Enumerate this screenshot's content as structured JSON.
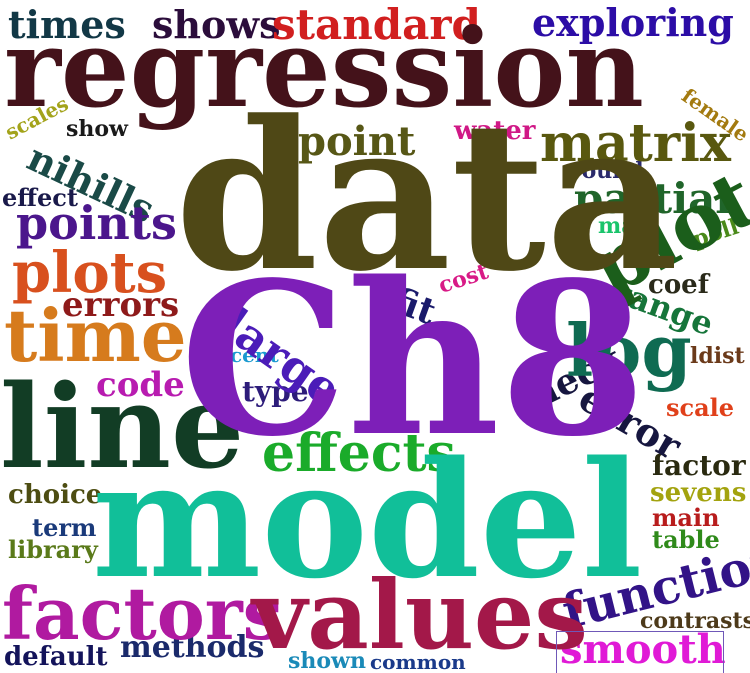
{
  "words": [
    {
      "id": "ch8",
      "text": "Ch8",
      "color": "#7d1fb8"
    },
    {
      "id": "model",
      "text": "model",
      "color": "#11bf99"
    },
    {
      "id": "data",
      "text": "data",
      "color": "#4f4816"
    },
    {
      "id": "regression",
      "text": "regression",
      "color": "#44121a"
    },
    {
      "id": "line",
      "text": "line",
      "color": "#123d25"
    },
    {
      "id": "values",
      "text": "values",
      "color": "#a31849"
    },
    {
      "id": "factors",
      "text": "factors",
      "color": "#b01aa0"
    },
    {
      "id": "time",
      "text": "time",
      "color": "#d67b1d"
    },
    {
      "id": "plot",
      "text": "plot",
      "color": "#1b5e1b"
    },
    {
      "id": "log",
      "text": "log",
      "color": "#0f6b52"
    },
    {
      "id": "effects",
      "text": "effects",
      "color": "#1aab2a"
    },
    {
      "id": "plots",
      "text": "plots",
      "color": "#d8501e"
    },
    {
      "id": "matrix",
      "text": "matrix",
      "color": "#59580f"
    },
    {
      "id": "function",
      "text": "function",
      "color": "#321387"
    },
    {
      "id": "points",
      "text": "points",
      "color": "#4b168c"
    },
    {
      "id": "standard",
      "text": "standard",
      "color": "#d11f1f"
    },
    {
      "id": "shows",
      "text": "shows",
      "color": "#2b0d3b"
    },
    {
      "id": "times",
      "text": "times",
      "color": "#123846"
    },
    {
      "id": "exploring",
      "text": "exploring",
      "color": "#2c0da6"
    },
    {
      "id": "large",
      "text": "large",
      "color": "#4b1cb8"
    },
    {
      "id": "partial",
      "text": "partial",
      "color": "#20652a"
    },
    {
      "id": "point",
      "text": "point",
      "color": "#575716"
    },
    {
      "id": "nihills",
      "text": "nihills",
      "color": "#1a4a47"
    },
    {
      "id": "errors",
      "text": "errors",
      "color": "#8e1a1a"
    },
    {
      "id": "code",
      "text": "code",
      "color": "#b81cb0"
    },
    {
      "id": "error",
      "text": "error",
      "color": "#16163f"
    },
    {
      "id": "check",
      "text": "check",
      "color": "#16163f"
    },
    {
      "id": "range",
      "text": "range",
      "color": "#16753a"
    },
    {
      "id": "smooth",
      "text": "smooth",
      "color": "#e01ad6"
    },
    {
      "id": "methods",
      "text": "methods",
      "color": "#1a2a6b"
    },
    {
      "id": "default",
      "text": "default",
      "color": "#13135a"
    },
    {
      "id": "fit",
      "text": "fit",
      "color": "#1a1a6b"
    },
    {
      "id": "type",
      "text": "type",
      "color": "#2d1c7a"
    },
    {
      "id": "water",
      "text": "water",
      "color": "#d01886"
    },
    {
      "id": "coef",
      "text": "coef",
      "color": "#2a2a1a"
    },
    {
      "id": "factor",
      "text": "factor",
      "color": "#2a2a10"
    },
    {
      "id": "effect",
      "text": "effect",
      "color": "#1a1a4a"
    },
    {
      "id": "choice",
      "text": "choice",
      "color": "#4d4d12"
    },
    {
      "id": "term",
      "text": "term",
      "color": "#1a3a7a"
    },
    {
      "id": "library",
      "text": "library",
      "color": "#5a7a1a"
    },
    {
      "id": "scale",
      "text": "scale",
      "color": "#e0401a"
    },
    {
      "id": "sevens",
      "text": "sevens",
      "color": "#a3a30f"
    },
    {
      "id": "main",
      "text": "main",
      "color": "#b81c1c"
    },
    {
      "id": "table",
      "text": "table",
      "color": "#2f8a1a"
    },
    {
      "id": "contrasts",
      "text": "contrasts",
      "color": "#4d3a1a"
    },
    {
      "id": "shown",
      "text": "shown",
      "color": "#1a8ab8"
    },
    {
      "id": "common",
      "text": "common",
      "color": "#1a3a8a"
    },
    {
      "id": "cost",
      "text": "cost",
      "color": "#d81a86"
    },
    {
      "id": "cent",
      "text": "cent",
      "color": "#1a9ad0"
    },
    {
      "id": "round",
      "text": "round",
      "color": "#2a2a6b"
    },
    {
      "id": "male",
      "text": "male",
      "color": "#1ac46b"
    },
    {
      "id": "poll",
      "text": "poll",
      "color": "#4a8a1a"
    },
    {
      "id": "ldist",
      "text": "ldist",
      "color": "#6b3a1a"
    },
    {
      "id": "female",
      "text": "female",
      "color": "#a37a0f"
    },
    {
      "id": "scales",
      "text": "scales",
      "color": "#a3a31a"
    },
    {
      "id": "show",
      "text": "show",
      "color": "#1a1a1a"
    }
  ]
}
